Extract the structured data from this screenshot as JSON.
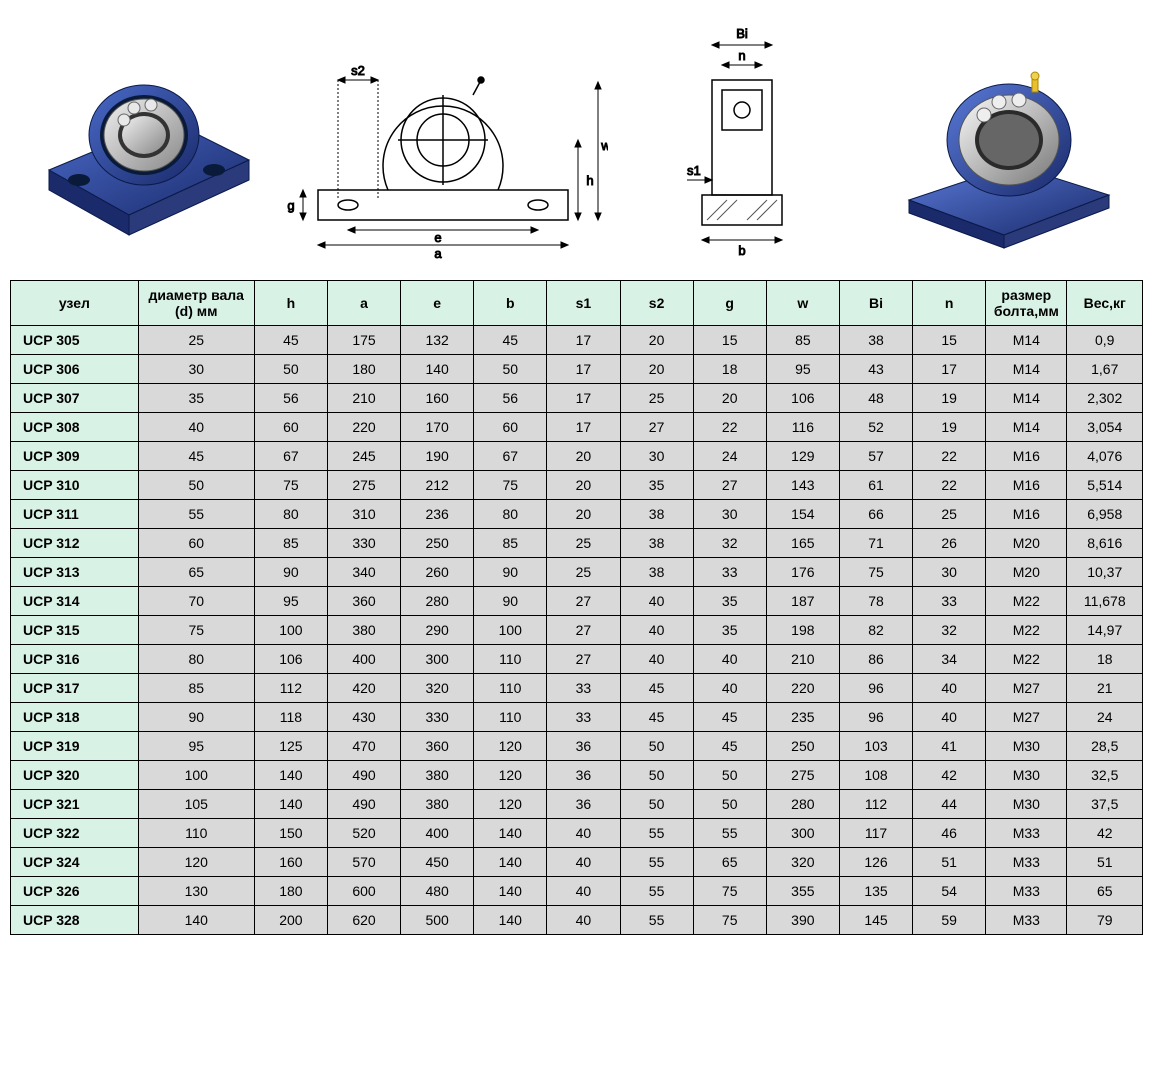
{
  "diagram": {
    "labels": {
      "s2": "s2",
      "g": "g",
      "e": "e",
      "a": "a",
      "h": "h",
      "w": "w",
      "Bi": "Bi",
      "n": "n",
      "s1": "s1",
      "b": "b"
    },
    "colors": {
      "bearing_blue": "#2a4a9a",
      "bearing_steel": "#c8c8c8",
      "bearing_dark": "#555555",
      "line": "#000000",
      "hatch": "#444444"
    }
  },
  "table": {
    "header_bg": "#d9f2e6",
    "cell_bg": "#d9d9d9",
    "border": "#000000",
    "columns": [
      "узел",
      "диаметр вала (d) мм",
      "h",
      "a",
      "e",
      "b",
      "s1",
      "s2",
      "g",
      "w",
      "Bi",
      "n",
      "размер болта,мм",
      "Вес,кг"
    ],
    "rows": [
      [
        "UCP 305",
        "25",
        "45",
        "175",
        "132",
        "45",
        "17",
        "20",
        "15",
        "85",
        "38",
        "15",
        "M14",
        "0,9"
      ],
      [
        "UCP 306",
        "30",
        "50",
        "180",
        "140",
        "50",
        "17",
        "20",
        "18",
        "95",
        "43",
        "17",
        "M14",
        "1,67"
      ],
      [
        "UCP 307",
        "35",
        "56",
        "210",
        "160",
        "56",
        "17",
        "25",
        "20",
        "106",
        "48",
        "19",
        "M14",
        "2,302"
      ],
      [
        "UCP 308",
        "40",
        "60",
        "220",
        "170",
        "60",
        "17",
        "27",
        "22",
        "116",
        "52",
        "19",
        "M14",
        "3,054"
      ],
      [
        "UCP 309",
        "45",
        "67",
        "245",
        "190",
        "67",
        "20",
        "30",
        "24",
        "129",
        "57",
        "22",
        "M16",
        "4,076"
      ],
      [
        "UCP 310",
        "50",
        "75",
        "275",
        "212",
        "75",
        "20",
        "35",
        "27",
        "143",
        "61",
        "22",
        "M16",
        "5,514"
      ],
      [
        "UCP 311",
        "55",
        "80",
        "310",
        "236",
        "80",
        "20",
        "38",
        "30",
        "154",
        "66",
        "25",
        "M16",
        "6,958"
      ],
      [
        "UCP 312",
        "60",
        "85",
        "330",
        "250",
        "85",
        "25",
        "38",
        "32",
        "165",
        "71",
        "26",
        "M20",
        "8,616"
      ],
      [
        "UCP 313",
        "65",
        "90",
        "340",
        "260",
        "90",
        "25",
        "38",
        "33",
        "176",
        "75",
        "30",
        "M20",
        "10,37"
      ],
      [
        "UCP 314",
        "70",
        "95",
        "360",
        "280",
        "90",
        "27",
        "40",
        "35",
        "187",
        "78",
        "33",
        "M22",
        "11,678"
      ],
      [
        "UCP 315",
        "75",
        "100",
        "380",
        "290",
        "100",
        "27",
        "40",
        "35",
        "198",
        "82",
        "32",
        "M22",
        "14,97"
      ],
      [
        "UCP 316",
        "80",
        "106",
        "400",
        "300",
        "110",
        "27",
        "40",
        "40",
        "210",
        "86",
        "34",
        "M22",
        "18"
      ],
      [
        "UCP 317",
        "85",
        "112",
        "420",
        "320",
        "110",
        "33",
        "45",
        "40",
        "220",
        "96",
        "40",
        "M27",
        "21"
      ],
      [
        "UCP 318",
        "90",
        "118",
        "430",
        "330",
        "110",
        "33",
        "45",
        "45",
        "235",
        "96",
        "40",
        "M27",
        "24"
      ],
      [
        "UCP 319",
        "95",
        "125",
        "470",
        "360",
        "120",
        "36",
        "50",
        "45",
        "250",
        "103",
        "41",
        "M30",
        "28,5"
      ],
      [
        "UCP 320",
        "100",
        "140",
        "490",
        "380",
        "120",
        "36",
        "50",
        "50",
        "275",
        "108",
        "42",
        "M30",
        "32,5"
      ],
      [
        "UCP 321",
        "105",
        "140",
        "490",
        "380",
        "120",
        "36",
        "50",
        "50",
        "280",
        "112",
        "44",
        "M30",
        "37,5"
      ],
      [
        "UCP 322",
        "110",
        "150",
        "520",
        "400",
        "140",
        "40",
        "55",
        "55",
        "300",
        "117",
        "46",
        "M33",
        "42"
      ],
      [
        "UCP 324",
        "120",
        "160",
        "570",
        "450",
        "140",
        "40",
        "55",
        "65",
        "320",
        "126",
        "51",
        "M33",
        "51"
      ],
      [
        "UCP 326",
        "130",
        "180",
        "600",
        "480",
        "140",
        "40",
        "55",
        "75",
        "355",
        "135",
        "54",
        "M33",
        "65"
      ],
      [
        "UCP 328",
        "140",
        "200",
        "620",
        "500",
        "140",
        "40",
        "55",
        "75",
        "390",
        "145",
        "59",
        "M33",
        "79"
      ]
    ]
  }
}
